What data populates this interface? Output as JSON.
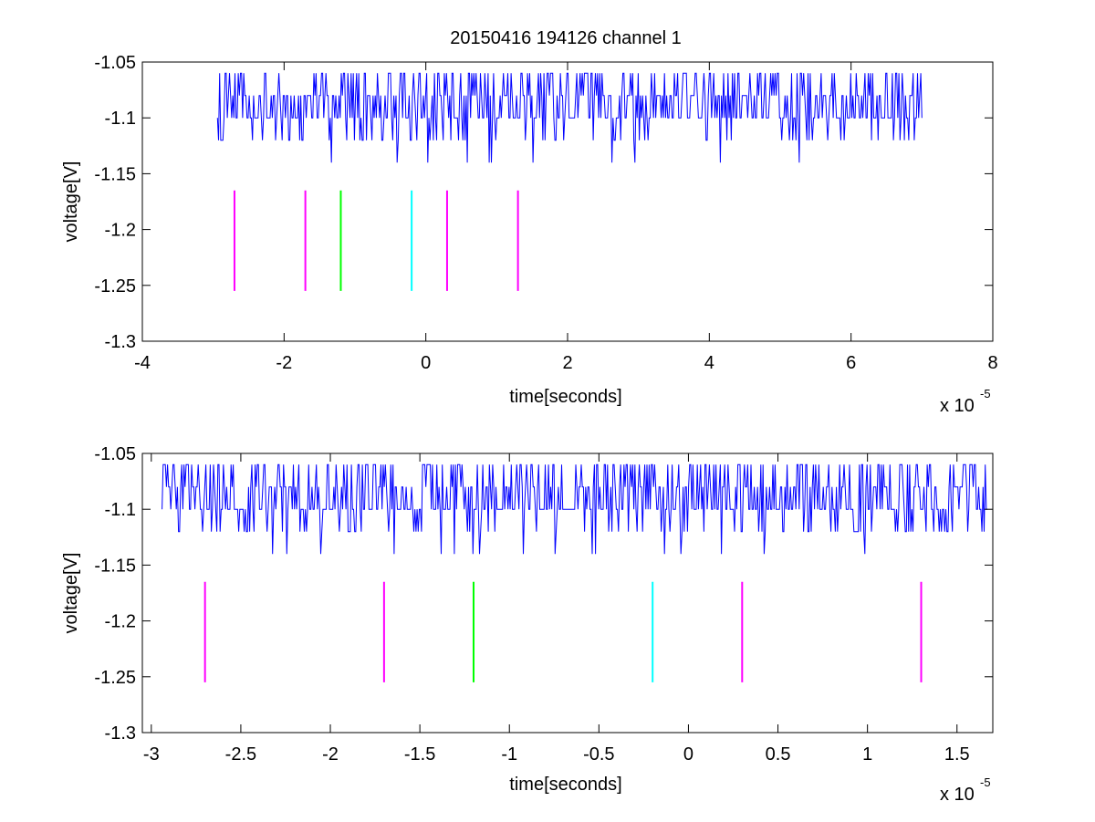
{
  "figure_title": "20150416 194126 channel 1",
  "chart_data": [
    {
      "type": "line",
      "title": "20150416 194126 channel 1",
      "xlabel": "time[seconds]",
      "ylabel": "voltage[V]",
      "x_exponent_label": "x 10",
      "x_exponent": "-5",
      "xlim": [
        -4,
        8
      ],
      "ylim": [
        -1.3,
        -1.05
      ],
      "x_ticks": [
        -4,
        -2,
        0,
        2,
        4,
        6,
        8
      ],
      "x_tick_labels": [
        "-4",
        "-2",
        "0",
        "2",
        "4",
        "6",
        "8"
      ],
      "y_ticks": [
        -1.05,
        -1.1,
        -1.15,
        -1.2,
        -1.25,
        -1.3
      ],
      "y_tick_labels": [
        "-1.05",
        "-1.1",
        "-1.15",
        "-1.2",
        "-1.25",
        "-1.3"
      ],
      "grid": false,
      "series": [
        {
          "kind": "signal",
          "color": "#0000ff",
          "x_range": [
            -2.94,
            7.0
          ],
          "levels": [
            -1.06,
            -1.08,
            -1.1,
            -1.12,
            -1.14
          ],
          "baseline": -1.1
        }
      ],
      "markers": [
        {
          "x": -2.7,
          "y_range": [
            -1.255,
            -1.165
          ],
          "color": "#ff00ff"
        },
        {
          "x": -1.7,
          "y_range": [
            -1.255,
            -1.165
          ],
          "color": "#ff00ff"
        },
        {
          "x": -1.2,
          "y_range": [
            -1.255,
            -1.165
          ],
          "color": "#00ff00"
        },
        {
          "x": -0.2,
          "y_range": [
            -1.255,
            -1.165
          ],
          "color": "#00ffff"
        },
        {
          "x": 0.3,
          "y_range": [
            -1.255,
            -1.165
          ],
          "color": "#ff00ff"
        },
        {
          "x": 1.3,
          "y_range": [
            -1.255,
            -1.165
          ],
          "color": "#ff00ff"
        }
      ]
    },
    {
      "type": "line",
      "title": "",
      "xlabel": "time[seconds]",
      "ylabel": "voltage[V]",
      "x_exponent_label": "x 10",
      "x_exponent": "-5",
      "xlim": [
        -3.05,
        1.7
      ],
      "ylim": [
        -1.3,
        -1.05
      ],
      "x_ticks": [
        -3,
        -2.5,
        -2,
        -1.5,
        -1,
        -0.5,
        0,
        0.5,
        1,
        1.5
      ],
      "x_tick_labels": [
        "-3",
        "-2.5",
        "-2",
        "-1.5",
        "-1",
        "-0.5",
        "0",
        "0.5",
        "1",
        "1.5"
      ],
      "y_ticks": [
        -1.05,
        -1.1,
        -1.15,
        -1.2,
        -1.25,
        -1.3
      ],
      "y_tick_labels": [
        "-1.05",
        "-1.1",
        "-1.15",
        "-1.2",
        "-1.25",
        "-1.3"
      ],
      "grid": false,
      "series": [
        {
          "kind": "signal",
          "color": "#0000ff",
          "x_range": [
            -2.94,
            1.67
          ],
          "levels": [
            -1.06,
            -1.08,
            -1.1,
            -1.12,
            -1.14
          ],
          "baseline": -1.1
        }
      ],
      "markers": [
        {
          "x": -2.7,
          "y_range": [
            -1.255,
            -1.165
          ],
          "color": "#ff00ff"
        },
        {
          "x": -1.7,
          "y_range": [
            -1.255,
            -1.165
          ],
          "color": "#ff00ff"
        },
        {
          "x": -1.2,
          "y_range": [
            -1.255,
            -1.165
          ],
          "color": "#00ff00"
        },
        {
          "x": -0.2,
          "y_range": [
            -1.255,
            -1.165
          ],
          "color": "#00ffff"
        },
        {
          "x": 0.3,
          "y_range": [
            -1.255,
            -1.165
          ],
          "color": "#ff00ff"
        },
        {
          "x": 1.3,
          "y_range": [
            -1.255,
            -1.165
          ],
          "color": "#ff00ff"
        }
      ]
    }
  ]
}
